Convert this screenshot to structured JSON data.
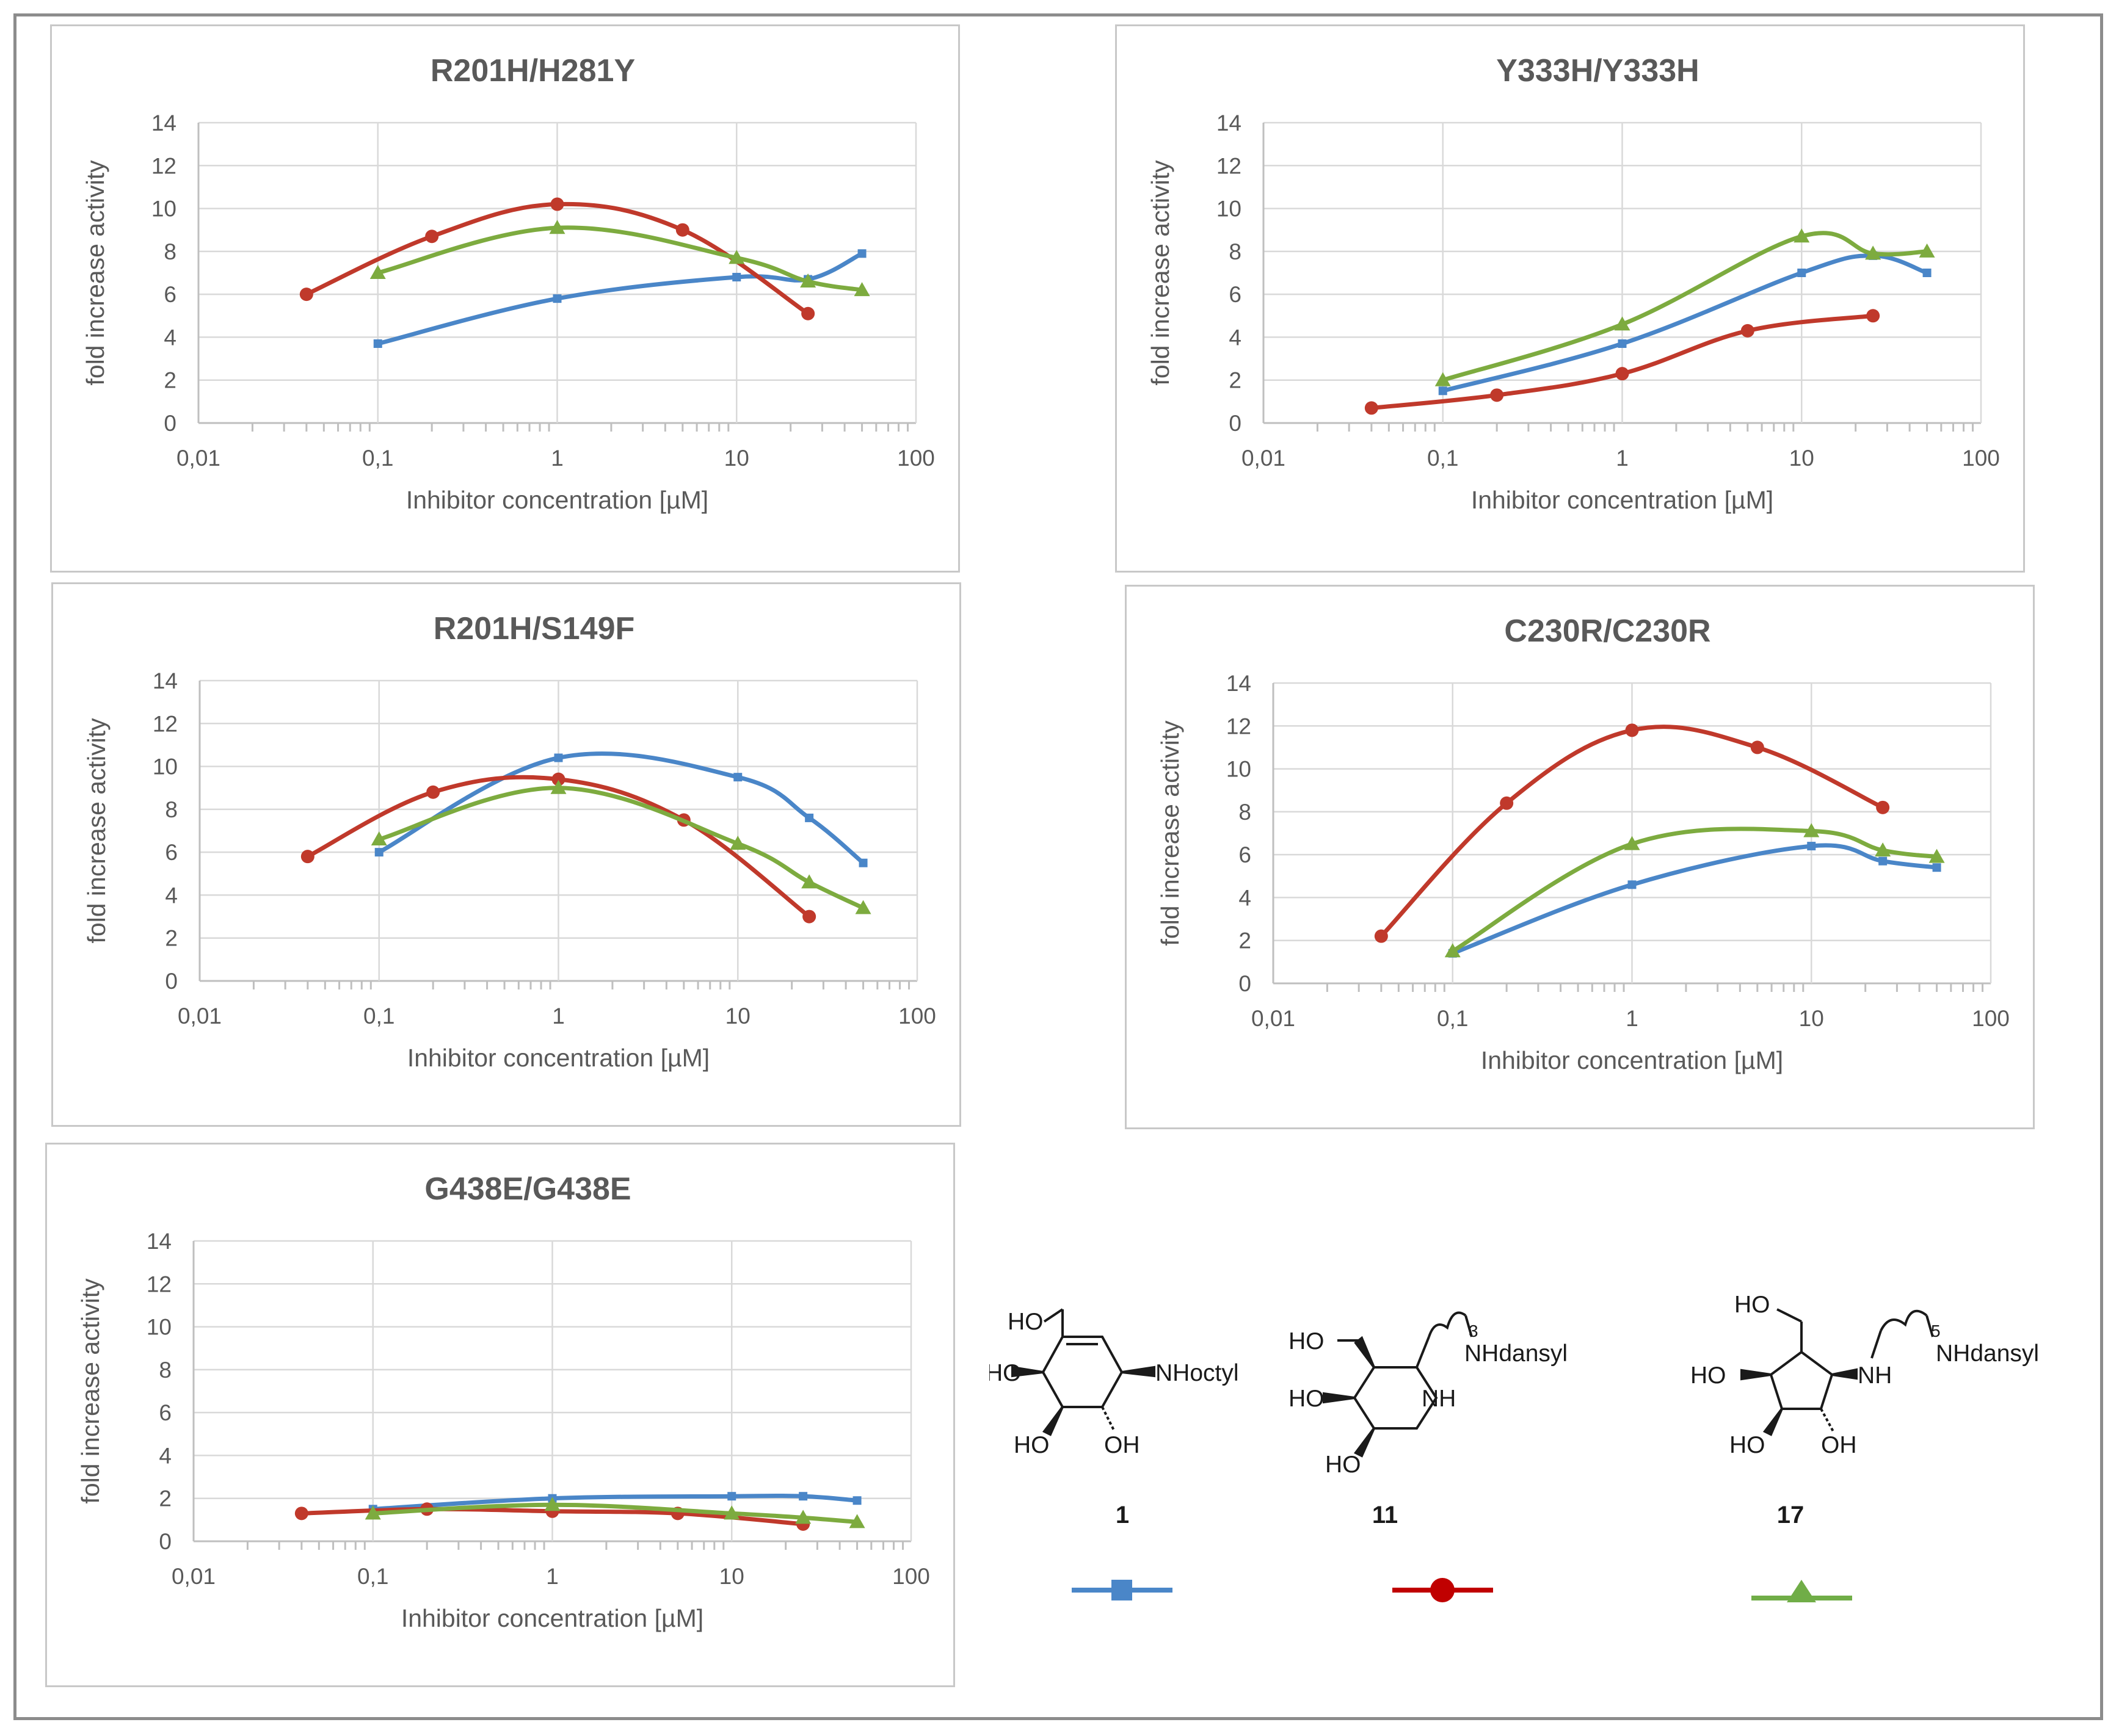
{
  "chart_data": [
    {
      "type": "line",
      "title": "R201H/H281Y",
      "xlabel": "Inhibitor concentration [µM]",
      "ylabel": "fold increase activity",
      "xscale": "log",
      "xlim": [
        0.01,
        100
      ],
      "ylim": [
        0,
        14
      ],
      "x_ticks": [
        "0,01",
        "0,1",
        "1",
        "10",
        "100"
      ],
      "y_ticks": [
        "0",
        "2",
        "4",
        "6",
        "8",
        "10",
        "12",
        "14"
      ],
      "series": [
        {
          "name": "1",
          "x": [
            0.1,
            1,
            10,
            25,
            50
          ],
          "values": [
            3.7,
            5.8,
            6.8,
            6.7,
            7.9
          ]
        },
        {
          "name": "11",
          "x": [
            0.04,
            0.2,
            1,
            5,
            25
          ],
          "values": [
            6.0,
            8.7,
            10.2,
            9.0,
            5.1
          ]
        },
        {
          "name": "17",
          "x": [
            0.1,
            1,
            10,
            25,
            50
          ],
          "values": [
            7.0,
            9.1,
            7.7,
            6.6,
            6.2
          ]
        }
      ]
    },
    {
      "type": "line",
      "title": "Y333H/Y333H",
      "xlabel": "Inhibitor concentration [µM]",
      "ylabel": "fold increase activity",
      "xscale": "log",
      "xlim": [
        0.01,
        100
      ],
      "ylim": [
        0,
        14
      ],
      "x_ticks": [
        "0,01",
        "0,1",
        "1",
        "10",
        "100"
      ],
      "y_ticks": [
        "0",
        "2",
        "4",
        "6",
        "8",
        "10",
        "12",
        "14"
      ],
      "series": [
        {
          "name": "1",
          "x": [
            0.1,
            1,
            10,
            25,
            50
          ],
          "values": [
            1.5,
            3.7,
            7.0,
            7.8,
            7.0
          ]
        },
        {
          "name": "11",
          "x": [
            0.04,
            0.2,
            1,
            5,
            25
          ],
          "values": [
            0.7,
            1.3,
            2.3,
            4.3,
            5.0
          ]
        },
        {
          "name": "17",
          "x": [
            0.1,
            1,
            10,
            25,
            50
          ],
          "values": [
            2.0,
            4.6,
            8.7,
            7.9,
            8.0
          ]
        }
      ]
    },
    {
      "type": "line",
      "title": "R201H/S149F",
      "xlabel": "Inhibitor concentration [µM]",
      "ylabel": "fold increase activity",
      "xscale": "log",
      "xlim": [
        0.01,
        100
      ],
      "ylim": [
        0,
        14
      ],
      "x_ticks": [
        "0,01",
        "0,1",
        "1",
        "10",
        "100"
      ],
      "y_ticks": [
        "0",
        "2",
        "4",
        "6",
        "8",
        "10",
        "12",
        "14"
      ],
      "series": [
        {
          "name": "1",
          "x": [
            0.1,
            1,
            10,
            25,
            50
          ],
          "values": [
            6.0,
            10.4,
            9.5,
            7.6,
            5.5
          ]
        },
        {
          "name": "11",
          "x": [
            0.04,
            0.2,
            1,
            5,
            25
          ],
          "values": [
            5.8,
            8.8,
            9.4,
            7.5,
            3.0
          ]
        },
        {
          "name": "17",
          "x": [
            0.1,
            1,
            10,
            25,
            50
          ],
          "values": [
            6.6,
            9.0,
            6.4,
            4.6,
            3.4
          ]
        }
      ]
    },
    {
      "type": "line",
      "title": "C230R/C230R",
      "xlabel": "Inhibitor concentration [µM]",
      "ylabel": "fold increase activity",
      "xscale": "log",
      "xlim": [
        0.01,
        100
      ],
      "ylim": [
        0,
        14
      ],
      "x_ticks": [
        "0,01",
        "0,1",
        "1",
        "10",
        "100"
      ],
      "y_ticks": [
        "0",
        "2",
        "4",
        "6",
        "8",
        "10",
        "12",
        "14"
      ],
      "series": [
        {
          "name": "1",
          "x": [
            0.1,
            1,
            10,
            25,
            50
          ],
          "values": [
            1.4,
            4.6,
            6.4,
            5.7,
            5.4
          ]
        },
        {
          "name": "11",
          "x": [
            0.04,
            0.2,
            1,
            5,
            25
          ],
          "values": [
            2.2,
            8.4,
            11.8,
            11.0,
            8.2
          ]
        },
        {
          "name": "17",
          "x": [
            0.1,
            1,
            10,
            25,
            50
          ],
          "values": [
            1.5,
            6.5,
            7.1,
            6.2,
            5.9
          ]
        }
      ]
    },
    {
      "type": "line",
      "title": "G438E/G438E",
      "xlabel": "Inhibitor concentration [µM]",
      "ylabel": "fold increase activity",
      "xscale": "log",
      "xlim": [
        0.01,
        100
      ],
      "ylim": [
        0,
        14
      ],
      "x_ticks": [
        "0,01",
        "0,1",
        "1",
        "10",
        "100"
      ],
      "y_ticks": [
        "0",
        "2",
        "4",
        "6",
        "8",
        "10",
        "12",
        "14"
      ],
      "series": [
        {
          "name": "1",
          "x": [
            0.1,
            1,
            10,
            25,
            50
          ],
          "values": [
            1.5,
            2.0,
            2.1,
            2.1,
            1.9
          ]
        },
        {
          "name": "11",
          "x": [
            0.04,
            0.2,
            1,
            5,
            25
          ],
          "values": [
            1.3,
            1.5,
            1.4,
            1.3,
            0.8
          ]
        },
        {
          "name": "17",
          "x": [
            0.1,
            1,
            10,
            25,
            50
          ],
          "values": [
            1.3,
            1.7,
            1.3,
            1.1,
            0.9
          ]
        }
      ]
    }
  ],
  "series_style": [
    {
      "name": "1",
      "color": "#4a86c8",
      "marker": "square"
    },
    {
      "name": "11",
      "color": "#c0392b",
      "marker": "circle"
    },
    {
      "name": "17",
      "color": "#7dab3f",
      "marker": "triangle"
    }
  ],
  "legend": {
    "compounds": [
      {
        "number": "1",
        "marker": "square",
        "color": "#4a86c8",
        "labels": [
          "HO",
          "HO",
          "HO",
          "OH",
          "NHoctyl"
        ]
      },
      {
        "number": "11",
        "marker": "circle",
        "color": "#c00000",
        "labels": [
          "HO",
          "HO",
          "HO",
          "NH",
          "NHdansyl",
          "3"
        ]
      },
      {
        "number": "17",
        "marker": "triangle",
        "color": "#70ad47",
        "labels": [
          "HO",
          "HO",
          "HO",
          "OH",
          "NH",
          "NHdansyl",
          "5"
        ]
      }
    ]
  }
}
